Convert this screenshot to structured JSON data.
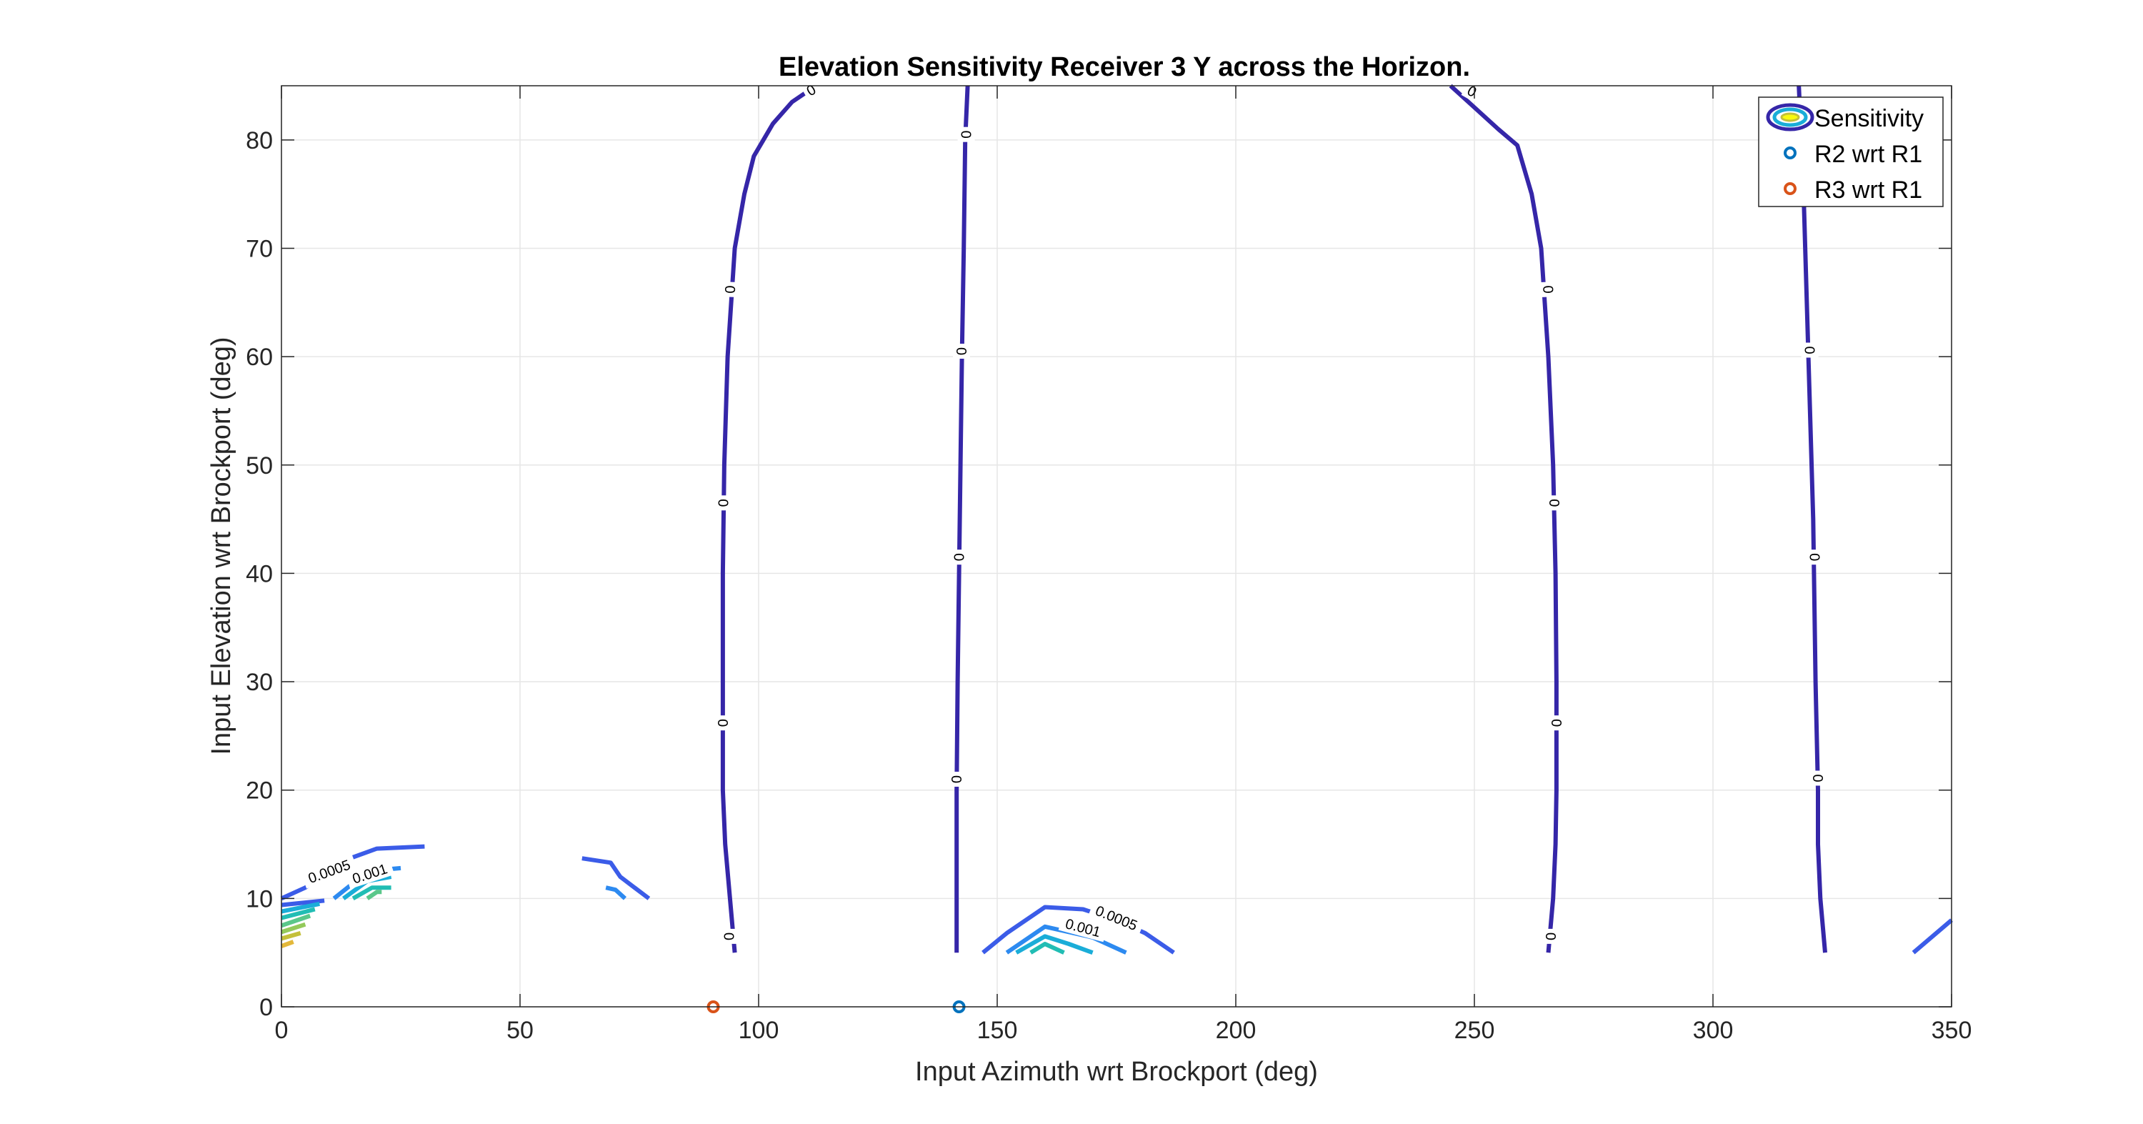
{
  "chart_data": {
    "type": "contour",
    "title": "Elevation Sensitivity Receiver 3 Y across the Horizon.",
    "xlabel": "Input Azimuth wrt Brockport (deg)",
    "ylabel": "Input Elevation wrt Brockport (deg)",
    "xlim": [
      0,
      350
    ],
    "ylim": [
      0,
      85
    ],
    "xticks": [
      0,
      50,
      100,
      150,
      200,
      250,
      300,
      350
    ],
    "yticks": [
      0,
      10,
      20,
      30,
      40,
      50,
      60,
      70,
      80
    ],
    "grid": true,
    "legend_position": "top-right",
    "legend": [
      {
        "label": "Sensitivity",
        "marker": "contour-ellipse"
      },
      {
        "label": "R2 wrt R1",
        "marker": "circle",
        "color": "#0072BD"
      },
      {
        "label": "R3 wrt R1",
        "marker": "circle",
        "color": "#D95319"
      }
    ],
    "markers": [
      {
        "name": "R2 wrt R1",
        "x": 142,
        "y": 0,
        "color": "#0072BD"
      },
      {
        "name": "R3 wrt R1",
        "x": 90.5,
        "y": 0,
        "color": "#D95319"
      }
    ],
    "contours": [
      {
        "level": "0",
        "color": "#3526A8",
        "points": [
          [
            95,
            5
          ],
          [
            94,
            10
          ],
          [
            93,
            15
          ],
          [
            92.5,
            20
          ],
          [
            92.5,
            30
          ],
          [
            92.5,
            40
          ],
          [
            92.8,
            50
          ],
          [
            93.5,
            60
          ],
          [
            95,
            70
          ],
          [
            97,
            75
          ],
          [
            99,
            78.5
          ],
          [
            101,
            80
          ],
          [
            103,
            81.5
          ],
          [
            107,
            83.5
          ],
          [
            112,
            85
          ]
        ]
      },
      {
        "level": "0",
        "color": "#3526A8",
        "points": [
          [
            141.5,
            5
          ],
          [
            141.5,
            10
          ],
          [
            141.5,
            20
          ],
          [
            141.7,
            30
          ],
          [
            142,
            40
          ],
          [
            142.3,
            50
          ],
          [
            142.6,
            60
          ],
          [
            143,
            70
          ],
          [
            143.3,
            80
          ],
          [
            143.8,
            85
          ]
        ]
      },
      {
        "level": "0",
        "color": "#3526A8",
        "points": [
          [
            245,
            85
          ],
          [
            250,
            83
          ],
          [
            255,
            81
          ],
          [
            259,
            79.5
          ],
          [
            262,
            75
          ],
          [
            264,
            70
          ],
          [
            265.5,
            60
          ],
          [
            266.5,
            50
          ],
          [
            267,
            40
          ],
          [
            267.2,
            30
          ],
          [
            267.2,
            20
          ],
          [
            267,
            15
          ],
          [
            266.5,
            10
          ],
          [
            265.5,
            5
          ]
        ]
      },
      {
        "level": "0",
        "color": "#3526A8",
        "points": [
          [
            318,
            85
          ],
          [
            319,
            75
          ],
          [
            320,
            60
          ],
          [
            321,
            45
          ],
          [
            321.5,
            30
          ],
          [
            322,
            20
          ],
          [
            322,
            15
          ],
          [
            322.5,
            10
          ],
          [
            323.5,
            5
          ]
        ]
      },
      {
        "level": "0.0005",
        "color": "#3B5CE8",
        "points": [
          [
            0,
            10
          ],
          [
            5,
            11
          ],
          [
            10,
            12.5
          ],
          [
            15,
            13.8
          ],
          [
            20,
            14.6
          ],
          [
            25,
            14.7
          ],
          [
            30,
            14.8
          ]
        ]
      },
      {
        "level": "0.0005",
        "color": "#3B5CE8",
        "points": [
          [
            0,
            9.4
          ],
          [
            9,
            9.8
          ]
        ]
      },
      {
        "level": "0.0005",
        "color": "#3B5CE8",
        "points": [
          [
            63,
            13.7
          ],
          [
            69,
            13.3
          ],
          [
            71,
            12
          ],
          [
            74,
            11
          ],
          [
            77,
            10
          ]
        ]
      },
      {
        "level": "0.0005",
        "color": "#3B5CE8",
        "points": [
          [
            147,
            5
          ],
          [
            152,
            6.8
          ],
          [
            160,
            9.2
          ],
          [
            168,
            9
          ],
          [
            175,
            8
          ],
          [
            181,
            6.8
          ],
          [
            187,
            5
          ]
        ]
      },
      {
        "level": "0.0005",
        "color": "#3B5CE8",
        "points": [
          [
            342,
            5
          ],
          [
            350,
            8
          ]
        ]
      },
      {
        "level": "0.001",
        "color": "#2D8AF0",
        "points": [
          [
            11,
            10
          ],
          [
            15,
            11.4
          ],
          [
            20,
            12.6
          ],
          [
            25,
            12.8
          ]
        ]
      },
      {
        "level": "0.001",
        "color": "#2D8AF0",
        "points": [
          [
            68,
            11
          ],
          [
            70,
            10.8
          ],
          [
            72,
            10
          ]
        ]
      },
      {
        "level": "0.001",
        "color": "#2D8AF0",
        "points": [
          [
            152,
            5
          ],
          [
            160,
            7.4
          ],
          [
            170,
            6.4
          ],
          [
            177,
            5
          ]
        ]
      },
      {
        "level": "0.0015",
        "color": "#1AADD8",
        "points": [
          [
            0,
            8.8
          ],
          [
            8,
            9.5
          ]
        ]
      },
      {
        "level": "0.0015",
        "color": "#1AADD8",
        "points": [
          [
            13,
            10
          ],
          [
            18,
            11.6
          ],
          [
            23,
            12
          ]
        ]
      },
      {
        "level": "0.0015",
        "color": "#1AADD8",
        "points": [
          [
            154,
            5
          ],
          [
            160,
            6.5
          ],
          [
            165,
            5.8
          ],
          [
            170,
            5
          ]
        ]
      },
      {
        "level": "0.002",
        "color": "#21BDB4",
        "points": [
          [
            0,
            8.2
          ],
          [
            7,
            9
          ]
        ]
      },
      {
        "level": "0.002",
        "color": "#21BDB4",
        "points": [
          [
            15,
            10
          ],
          [
            19,
            11
          ],
          [
            23,
            11
          ]
        ]
      },
      {
        "level": "0.002",
        "color": "#21BDB4",
        "points": [
          [
            157,
            5
          ],
          [
            160,
            5.8
          ],
          [
            164,
            5
          ]
        ]
      },
      {
        "level": "0.0025",
        "color": "#5AC78A",
        "points": [
          [
            0,
            7.5
          ],
          [
            6,
            8.4
          ]
        ]
      },
      {
        "level": "0.0025",
        "color": "#5AC78A",
        "points": [
          [
            18,
            10
          ],
          [
            20,
            10.6
          ],
          [
            21,
            10.6
          ]
        ]
      },
      {
        "level": "0.003",
        "color": "#93C95A",
        "points": [
          [
            0,
            6.9
          ],
          [
            5,
            7.6
          ]
        ]
      },
      {
        "level": "0.0035",
        "color": "#C4C03A",
        "points": [
          [
            0,
            6.3
          ],
          [
            4,
            6.8
          ]
        ]
      },
      {
        "level": "0.004",
        "color": "#E3B83A",
        "points": [
          [
            0,
            5.6
          ],
          [
            2.5,
            6
          ]
        ]
      }
    ],
    "contour_labels": [
      {
        "text": "0",
        "x": 111,
        "y": 84.6,
        "angle": -30
      },
      {
        "text": "0",
        "x": 94,
        "y": 66.2,
        "angle": -88
      },
      {
        "text": "0",
        "x": 92.6,
        "y": 46.5,
        "angle": -90
      },
      {
        "text": "0",
        "x": 92.5,
        "y": 26.2,
        "angle": -90
      },
      {
        "text": "0",
        "x": 93.8,
        "y": 6.5,
        "angle": -90
      },
      {
        "text": "0",
        "x": 143.5,
        "y": 80.5,
        "angle": -90
      },
      {
        "text": "0",
        "x": 142.5,
        "y": 60.5,
        "angle": -90
      },
      {
        "text": "0",
        "x": 142,
        "y": 41.5,
        "angle": -90
      },
      {
        "text": "0",
        "x": 141.5,
        "y": 21,
        "angle": -90
      },
      {
        "text": "0",
        "x": 249.5,
        "y": 84.5,
        "angle": 30
      },
      {
        "text": "0",
        "x": 265.5,
        "y": 66.2,
        "angle": 88
      },
      {
        "text": "0",
        "x": 266.8,
        "y": 46.5,
        "angle": 90
      },
      {
        "text": "0",
        "x": 267.2,
        "y": 26.2,
        "angle": 90
      },
      {
        "text": "0",
        "x": 266,
        "y": 6.5,
        "angle": 90
      },
      {
        "text": "0",
        "x": 320.3,
        "y": 60.6,
        "angle": -90
      },
      {
        "text": "0",
        "x": 321.3,
        "y": 41.5,
        "angle": -90
      },
      {
        "text": "0",
        "x": 322,
        "y": 21.1,
        "angle": -90
      },
      {
        "text": "0.0005",
        "x": 10,
        "y": 12.5,
        "angle": -20
      },
      {
        "text": "0.001",
        "x": 18.5,
        "y": 12.3,
        "angle": -18
      },
      {
        "text": "0.0005",
        "x": 175,
        "y": 8.2,
        "angle": 22
      },
      {
        "text": "0.001",
        "x": 168,
        "y": 7.3,
        "angle": 15
      }
    ]
  }
}
